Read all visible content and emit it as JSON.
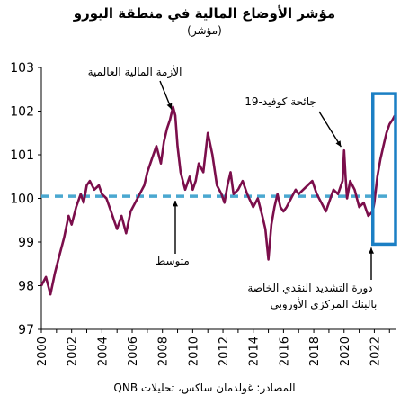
{
  "title": "مؤشر الأوضاع المالية في منطقة اليورو",
  "subtitle": "(مؤشر)",
  "source": "المصادر: غولدمان ساكس، تحليلات QNB",
  "annotations": {
    "gfc": "الأزمة المالية العالمية",
    "covid": "جائحة كوفيد-19",
    "average": "متوسط",
    "tightening_line1": "دورة التشديد النقدي الخاصة",
    "tightening_line2": "بالبنك المركزي الأوروبي"
  },
  "colors": {
    "series": "#7b0e4b",
    "average": "#4aa8d0",
    "highlight_box": "#1b7fc4",
    "axis": "#000000"
  },
  "chart_data": {
    "type": "line",
    "title": "مؤشر الأوضاع المالية في منطقة اليورو",
    "subtitle": "(مؤشر)",
    "xlabel": "",
    "ylabel": "",
    "xlim": [
      2000,
      2023.4
    ],
    "ylim": [
      97,
      103
    ],
    "yticks": [
      97,
      98,
      99,
      100,
      101,
      102,
      103
    ],
    "xticks": [
      2000,
      2002,
      2004,
      2006,
      2008,
      2010,
      2012,
      2014,
      2016,
      2018,
      2020,
      2022
    ],
    "average": 100.05,
    "highlight_range": {
      "x": [
        2021.9,
        2023.4
      ],
      "y": [
        98.95,
        102.4
      ]
    },
    "grid": false,
    "legend": "none",
    "series": [
      {
        "x": [
          2000.0,
          2000.3,
          2000.6,
          2000.9,
          2001.2,
          2001.5,
          2001.8,
          2002.0,
          2002.3,
          2002.6,
          2002.8,
          2003.0,
          2003.2,
          2003.5,
          2003.8,
          2004.0,
          2004.3,
          2004.6,
          2004.8,
          2005.0,
          2005.3,
          2005.6,
          2005.9,
          2006.2,
          2006.5,
          2006.8,
          2007.0,
          2007.3,
          2007.6,
          2007.9,
          2008.1,
          2008.3,
          2008.5,
          2008.7,
          2008.85,
          2009.0,
          2009.2,
          2009.5,
          2009.8,
          2010.0,
          2010.2,
          2010.4,
          2010.7,
          2011.0,
          2011.3,
          2011.6,
          2011.9,
          2012.1,
          2012.3,
          2012.5,
          2012.7,
          2013.0,
          2013.3,
          2013.6,
          2014.0,
          2014.3,
          2014.6,
          2014.8,
          2015.0,
          2015.2,
          2015.4,
          2015.6,
          2015.8,
          2016.0,
          2016.2,
          2016.5,
          2016.8,
          2017.0,
          2017.3,
          2017.6,
          2017.9,
          2018.2,
          2018.5,
          2018.8,
          2019.0,
          2019.3,
          2019.6,
          2019.9,
          2020.0,
          2020.1,
          2020.2,
          2020.4,
          2020.7,
          2021.0,
          2021.3,
          2021.6,
          2021.9,
          2022.0,
          2022.2,
          2022.4,
          2022.6,
          2022.8,
          2023.0,
          2023.2,
          2023.35
        ],
        "values": [
          98.0,
          98.2,
          97.8,
          98.3,
          98.7,
          99.1,
          99.6,
          99.4,
          99.8,
          100.1,
          99.9,
          100.3,
          100.4,
          100.2,
          100.3,
          100.1,
          100.0,
          99.7,
          99.5,
          99.3,
          99.6,
          99.2,
          99.7,
          99.9,
          100.1,
          100.3,
          100.6,
          100.9,
          101.2,
          100.8,
          101.3,
          101.6,
          101.8,
          102.1,
          101.9,
          101.2,
          100.6,
          100.2,
          100.5,
          100.2,
          100.4,
          100.8,
          100.6,
          101.5,
          101.0,
          100.3,
          100.1,
          99.9,
          100.3,
          100.6,
          100.1,
          100.2,
          100.4,
          100.1,
          99.8,
          100.0,
          99.6,
          99.3,
          98.6,
          99.4,
          99.8,
          100.1,
          99.8,
          99.7,
          99.8,
          100.0,
          100.2,
          100.1,
          100.2,
          100.3,
          100.4,
          100.1,
          99.9,
          99.7,
          99.9,
          100.2,
          100.1,
          100.4,
          101.1,
          100.5,
          100.0,
          100.4,
          100.2,
          99.8,
          99.9,
          99.6,
          99.7,
          99.9,
          100.5,
          100.9,
          101.2,
          101.5,
          101.7,
          101.8,
          101.9
        ]
      }
    ]
  }
}
